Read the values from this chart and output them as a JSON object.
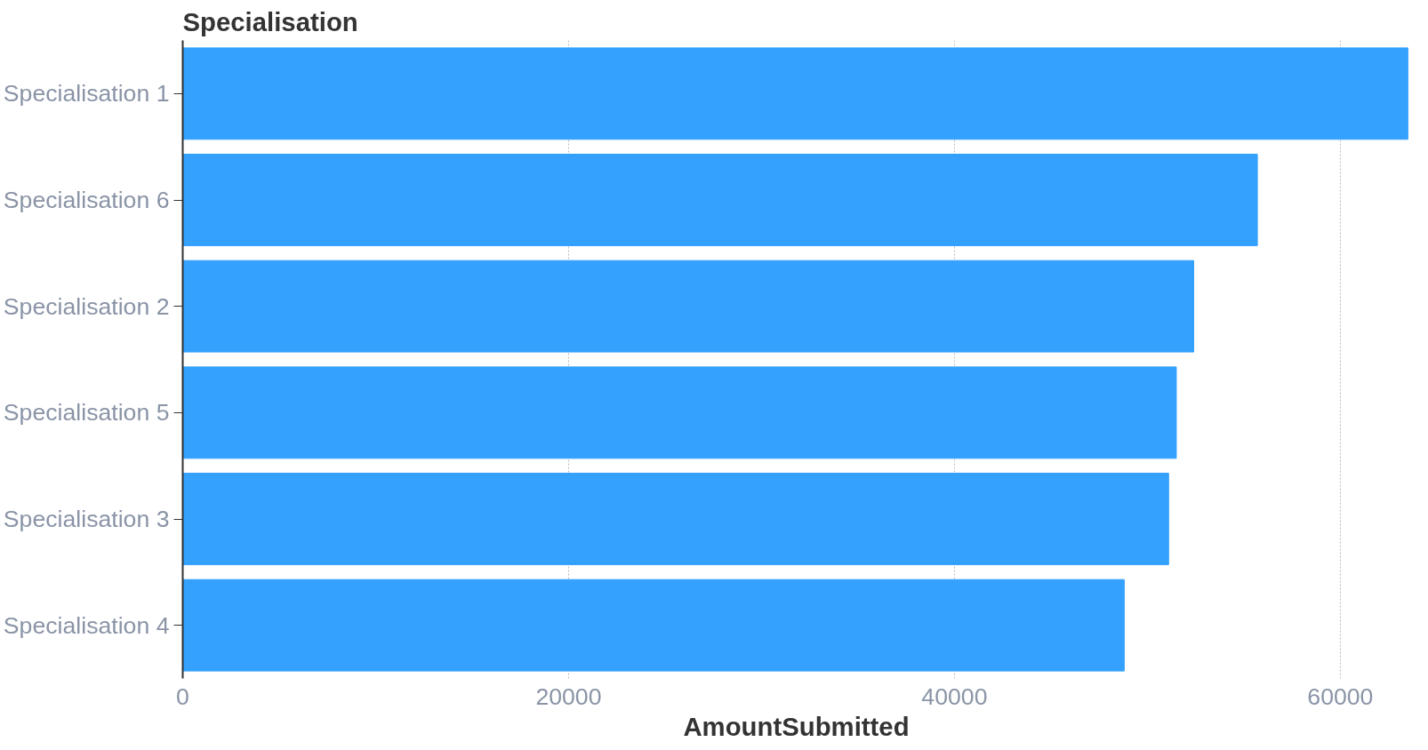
{
  "chart_data": {
    "type": "bar",
    "orientation": "horizontal",
    "ylabel": "Specialisation",
    "xlabel": "AmountSubmitted",
    "categories": [
      "Specialisation 1",
      "Specialisation 6",
      "Specialisation 2",
      "Specialisation 5",
      "Specialisation 3",
      "Specialisation 4"
    ],
    "values": [
      63500,
      55700,
      52400,
      51500,
      51100,
      48800
    ],
    "color": "#33a1fd",
    "xlim": [
      0,
      63600
    ],
    "xticks": [
      0,
      20000,
      40000,
      60000
    ],
    "grid": "x"
  }
}
